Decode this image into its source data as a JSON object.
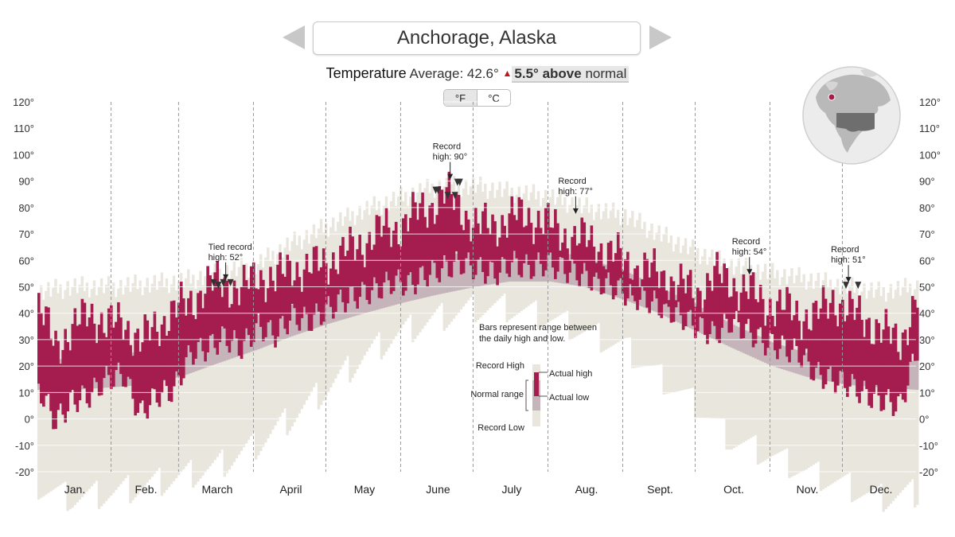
{
  "header": {
    "city": "Anchorage, Alaska",
    "prev_label": "previous city",
    "next_label": "next city",
    "temperature_label": "Temperature",
    "average_text": "Average: 42.6°",
    "anomaly_value": "5.5°",
    "anomaly_word": "above",
    "anomaly_suffix": "normal",
    "anomaly_icon": "up-triangle-icon"
  },
  "units": {
    "fahrenheit": "°F",
    "celsius": "°C",
    "selected": "°F"
  },
  "colors": {
    "actual": "#a51d4f",
    "normal": "#c5b4ba",
    "record": "#e8e6dd",
    "grid": "#9a9a9a",
    "anomaly_up": "#c0151d"
  },
  "globe": {
    "icon": "globe-north-america-icon"
  },
  "chart_data": {
    "type": "bar",
    "title": "Anchorage, Alaska",
    "ylim": [
      -20,
      120
    ],
    "yticks": [
      "-20°",
      "-10°",
      "0°",
      "10°",
      "20°",
      "30°",
      "40°",
      "50°",
      "60°",
      "70°",
      "80°",
      "90°",
      "100°",
      "110°",
      "120°"
    ],
    "ytick_values": [
      -20,
      -10,
      0,
      10,
      20,
      30,
      40,
      50,
      60,
      70,
      80,
      90,
      100,
      110,
      120
    ],
    "months": [
      "Jan.",
      "Feb.",
      "March",
      "April",
      "May",
      "June",
      "July",
      "Aug.",
      "Sept.",
      "Oct.",
      "Nov.",
      "Dec."
    ],
    "days_per_month": [
      31,
      28,
      31,
      30,
      31,
      30,
      31,
      31,
      30,
      31,
      30,
      31
    ],
    "normal_range": {
      "day": [
        1,
        15,
        32,
        46,
        60,
        75,
        91,
        105,
        121,
        136,
        152,
        166,
        182,
        196,
        213,
        227,
        244,
        258,
        274,
        288,
        305,
        319,
        335,
        349,
        365
      ],
      "low": [
        11,
        11,
        12,
        13,
        16,
        21,
        26,
        31,
        36,
        40,
        44,
        47,
        50,
        52,
        52,
        50,
        45,
        40,
        33,
        27,
        20,
        16,
        13,
        12,
        11
      ],
      "high": [
        22,
        23,
        24,
        26,
        30,
        34,
        39,
        43,
        48,
        53,
        58,
        61,
        64,
        65,
        64,
        61,
        56,
        50,
        43,
        36,
        29,
        25,
        23,
        22,
        22
      ]
    },
    "record_range": {
      "day": [
        1,
        15,
        32,
        46,
        60,
        75,
        91,
        105,
        121,
        136,
        152,
        166,
        182,
        196,
        213,
        227,
        244,
        258,
        274,
        288,
        305,
        319,
        335,
        349,
        365
      ],
      "low": [
        -26,
        -30,
        -28,
        -25,
        -22,
        -18,
        -10,
        0,
        12,
        24,
        33,
        38,
        42,
        42,
        38,
        33,
        27,
        16,
        5,
        -8,
        -14,
        -20,
        -25,
        -30,
        -28
      ],
      "high": [
        48,
        50,
        50,
        51,
        52,
        55,
        58,
        66,
        73,
        79,
        84,
        88,
        88,
        86,
        84,
        80,
        77,
        70,
        63,
        58,
        55,
        53,
        50,
        48,
        50
      ]
    },
    "actual": {
      "day": [
        1,
        8,
        15,
        22,
        29,
        36,
        43,
        50,
        57,
        64,
        71,
        78,
        85,
        92,
        99,
        106,
        113,
        120,
        127,
        134,
        141,
        148,
        155,
        162,
        169,
        176,
        183,
        190,
        197,
        204,
        211,
        218,
        225,
        232,
        239,
        246,
        253,
        260,
        267,
        274,
        281,
        288,
        295,
        302,
        309,
        316,
        323,
        330,
        337,
        344,
        351,
        358,
        365
      ],
      "low": [
        15,
        2,
        10,
        12,
        18,
        20,
        5,
        12,
        14,
        28,
        30,
        34,
        30,
        38,
        35,
        42,
        40,
        44,
        48,
        50,
        52,
        55,
        54,
        58,
        60,
        62,
        60,
        58,
        62,
        60,
        62,
        60,
        58,
        55,
        53,
        50,
        48,
        45,
        42,
        38,
        35,
        40,
        36,
        32,
        30,
        28,
        20,
        18,
        16,
        12,
        10,
        8,
        30
      ],
      "high": [
        40,
        30,
        32,
        42,
        34,
        38,
        28,
        36,
        40,
        45,
        50,
        52,
        48,
        55,
        52,
        58,
        56,
        60,
        62,
        66,
        70,
        72,
        76,
        80,
        85,
        80,
        72,
        74,
        76,
        77,
        74,
        70,
        68,
        66,
        62,
        58,
        56,
        54,
        50,
        48,
        54,
        52,
        48,
        44,
        42,
        40,
        38,
        46,
        40,
        38,
        32,
        30,
        45
      ]
    },
    "annotations": [
      {
        "line1": "Tied record",
        "line2": "high: 52°",
        "value": 52,
        "day": 79
      },
      {
        "line1": "Record",
        "line2": "high: 90°",
        "value": 90,
        "day": 172
      },
      {
        "line1": "Record",
        "line2": "high: 77°",
        "value": 77,
        "day": 224
      },
      {
        "line1": "Record",
        "line2": "high: 54°",
        "value": 54,
        "day": 296
      },
      {
        "line1": "Record",
        "line2": "high: 51°",
        "value": 51,
        "day": 337
      }
    ],
    "record_markers": [
      {
        "day": 74,
        "value": 49
      },
      {
        "day": 76,
        "value": 48
      },
      {
        "day": 78,
        "value": 49
      },
      {
        "day": 81,
        "value": 49
      },
      {
        "day": 166,
        "value": 84
      },
      {
        "day": 167,
        "value": 84
      },
      {
        "day": 171,
        "value": 82
      },
      {
        "day": 174,
        "value": 82
      },
      {
        "day": 175,
        "value": 87
      },
      {
        "day": 176,
        "value": 87
      },
      {
        "day": 336,
        "value": 48
      },
      {
        "day": 341,
        "value": 48
      }
    ],
    "legend": {
      "caption_line1": "Bars represent range between",
      "caption_line2": "the daily high and low.",
      "record_high": "Record High",
      "normal_range": "Normal range",
      "record_low": "Record Low",
      "actual_high": "Actual high",
      "actual_low": "Actual low"
    }
  }
}
